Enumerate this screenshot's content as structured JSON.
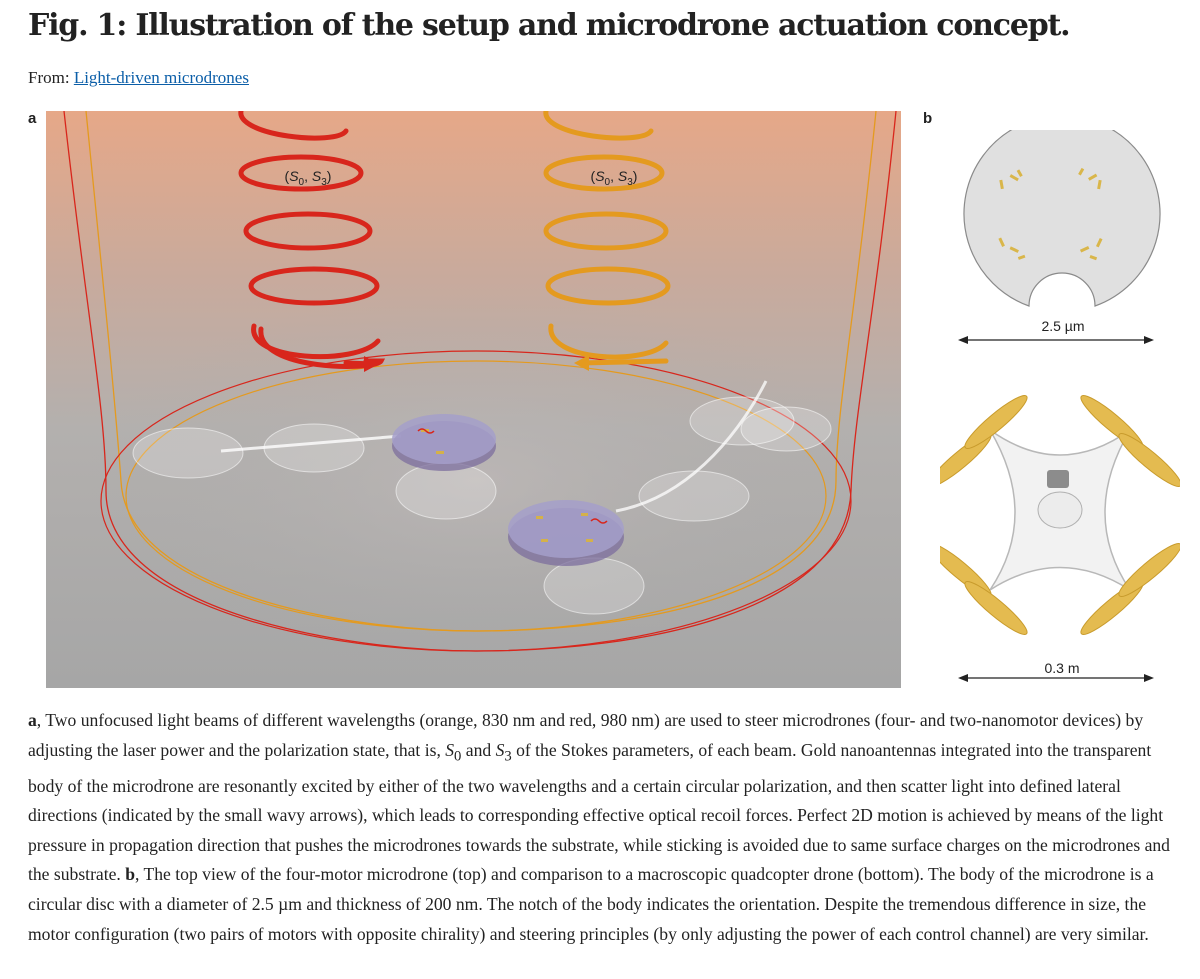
{
  "figure": {
    "title": "Fig. 1: Illustration of the setup and microdrone actuation concept.",
    "from_label": "From:",
    "from_link": "Light-driven microdrones"
  },
  "panel_a": {
    "label": "a",
    "beam_left_label_s0": "S",
    "beam_label_sub0": "0",
    "beam_label_sub3": "3",
    "beam_colors": {
      "red": "#d8261c",
      "orange": "#e49a1f"
    }
  },
  "panel_b": {
    "label": "b",
    "microdrone_scale": "2.5 µm",
    "quadcopter_scale": "0.3 m"
  },
  "caption": {
    "p1_label": "a",
    "p1_text_1": ", Two unfocused light beams of different wavelengths (orange, 830 nm and red, 980 nm) are used to steer microdrones (four- and two-nanomotor devices) by adjusting the laser power and the polarization state, that is, ",
    "s0": "S",
    "s0_sub": "0",
    "and": " and ",
    "s3": "S",
    "s3_sub": "3",
    "p1_text_2": " of the Stokes parameters, of each beam. Gold nanoantennas integrated into the transparent body of the microdrone are resonantly excited by either of the two wavelengths and a certain circular polarization, and then scatter light into defined lateral directions (indicated by the small wavy arrows), which leads to corresponding effective optical recoil forces. Perfect 2D motion is achieved by means of the light pressure in propagation direction that pushes the microdrones towards the substrate, while sticking is avoided due to same surface charges on the microdrones and the substrate. ",
    "p2_label": "b",
    "p2_text": ", The top view of the four-motor microdrone (top) and comparison to a macroscopic quadcopter drone (bottom). The body of the microdrone is a circular disc with a diameter of 2.5 µm and thickness of 200 nm. The notch of the body indicates the orientation. Despite the tremendous difference in size, the motor configuration (two pairs of motors with opposite chirality) and steering principles (by only adjusting the power of each control channel) are very similar."
  }
}
